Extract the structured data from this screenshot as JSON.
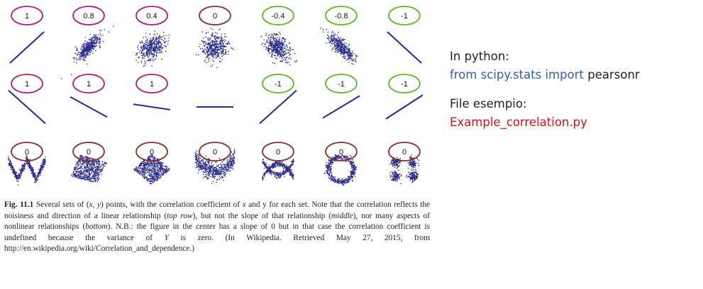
{
  "figure": {
    "row1": [
      "1",
      "0.8",
      "0.4",
      "0",
      "-0.4",
      "-0.8",
      "-1"
    ],
    "row2": [
      "1",
      "1",
      "1",
      "",
      "-1",
      "-1",
      "-1"
    ],
    "row3": [
      "0",
      "0",
      "0",
      "0",
      "0",
      "0",
      "0"
    ],
    "colors": {
      "points": "#2a2a8c",
      "positive_circle": "#b0197e",
      "negative_circle": "#5cb82a",
      "zero_circle": "#8a2a2a"
    }
  },
  "caption": {
    "label": "Fig. 11.1",
    "parts": [
      " Several sets of (",
      "x, y",
      ") points, with the correlation coefficient of ",
      "x",
      " and y for each set. Note that the correlation reflects the noisiness and direction of a linear relationship (",
      "top row",
      "), but not the slope of that relationship (",
      "middle",
      "), nor many aspects of nonlinear relationships (",
      "bottom",
      "). N.B.: the figure in the center has a slope of 0 but in that case the correlation coefficient is undefined because the variance of ",
      "Y",
      " is zero. (In Wikipedia. Retrieved May 27, 2015, from http://en.wikipedia.org/wiki/Correlation_and_dependence.)"
    ]
  },
  "side": {
    "python_label": "In python:",
    "import_keywords": "from scipy.stats import",
    "import_name": " pearsonr",
    "file_label": "File esempio:",
    "file_name": "Example_correlation.py",
    "colors": {
      "keyword": "#2e5fb5",
      "file": "#e01010",
      "text": "#222222"
    }
  }
}
